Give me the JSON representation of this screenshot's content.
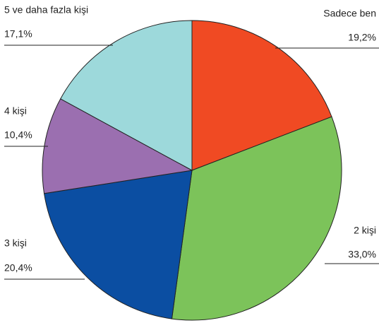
{
  "chart_data": {
    "type": "pie",
    "categories": [
      "Sadece ben",
      "2 kişi",
      "3 kişi",
      "4 kişi",
      "5 ve daha fazla kişi"
    ],
    "values": [
      19.2,
      33.0,
      20.4,
      10.4,
      17.1
    ],
    "value_labels": [
      "19,2%",
      "33,0%",
      "20,4%",
      "10,4%",
      "17,1%"
    ],
    "colors": [
      "#f04a23",
      "#7cc35a",
      "#0b4ea2",
      "#9b6fb0",
      "#9dd9db"
    ]
  }
}
